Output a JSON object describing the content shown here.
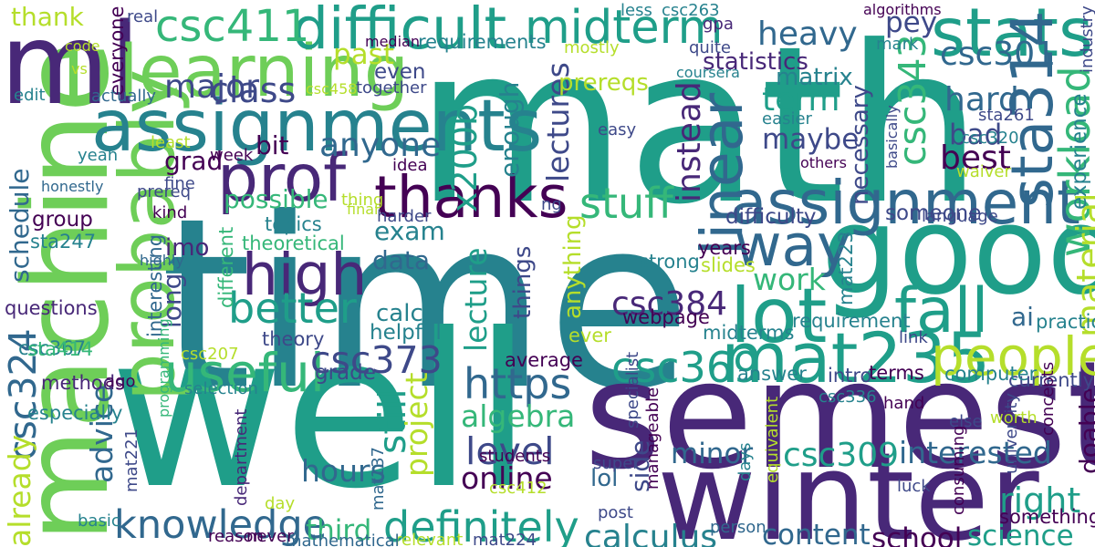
{
  "colors": {
    "background": "#ffffff",
    "palette": [
      "#440154",
      "#482878",
      "#3e4989",
      "#31688e",
      "#26828e",
      "#1f9e89",
      "#35b779",
      "#6ece58",
      "#b5de2b",
      "#fde725"
    ]
  },
  "words": [
    {
      "text": "time",
      "color": "#26828e",
      "weight": 1.0
    },
    {
      "text": "math",
      "color": "#1f9e89",
      "weight": 0.92
    },
    {
      "text": "well",
      "color": "#1f9e89",
      "weight": 0.9
    },
    {
      "text": "semester",
      "color": "#482878",
      "weight": 0.62
    },
    {
      "text": "winter",
      "color": "#482878",
      "weight": 0.5
    },
    {
      "text": "good",
      "color": "#1f9e89",
      "weight": 0.5
    },
    {
      "text": "machine",
      "color": "#6ece58",
      "weight": 0.48
    },
    {
      "text": "ml",
      "color": "#482878",
      "weight": 0.46
    },
    {
      "text": "probably",
      "color": "#6ece58",
      "weight": 0.3
    },
    {
      "text": "learning",
      "color": "#6ece58",
      "weight": 0.28
    },
    {
      "text": "assignments",
      "color": "#26828e",
      "weight": 0.28
    },
    {
      "text": "mat235",
      "color": "#1f9e89",
      "weight": 0.27
    },
    {
      "text": "lot",
      "color": "#1f9e89",
      "weight": 0.3
    },
    {
      "text": "stats",
      "color": "#1f9e89",
      "weight": 0.26
    },
    {
      "text": "assignment",
      "color": "#31688e",
      "weight": 0.23
    },
    {
      "text": "prof",
      "color": "#482878",
      "weight": 0.25
    },
    {
      "text": "difficult",
      "color": "#1f9e89",
      "weight": 0.22
    },
    {
      "text": "thanks",
      "color": "#440154",
      "weight": 0.22
    },
    {
      "text": "linear",
      "color": "#31688e",
      "weight": 0.22
    },
    {
      "text": "high",
      "color": "#482878",
      "weight": 0.22
    },
    {
      "text": "fall",
      "color": "#1f9e89",
      "weight": 0.24
    },
    {
      "text": "sta314",
      "color": "#31688e",
      "weight": 0.22
    },
    {
      "text": "way",
      "color": "#31688e",
      "weight": 0.22
    },
    {
      "text": "people",
      "color": "#b5de2b",
      "weight": 0.2
    },
    {
      "text": "useful",
      "color": "#35b779",
      "weight": 0.2
    },
    {
      "text": "midterm",
      "color": "#1f9e89",
      "weight": 0.17
    },
    {
      "text": "csc411",
      "color": "#35b779",
      "weight": 0.16
    },
    {
      "text": "better",
      "color": "#1f9e89",
      "weight": 0.15
    },
    {
      "text": "workload",
      "color": "#35b779",
      "weight": 0.15
    },
    {
      "text": "csc369",
      "color": "#1f9e89",
      "weight": 0.15
    },
    {
      "text": "https",
      "color": "#31688e",
      "weight": 0.15
    },
    {
      "text": "definitely",
      "color": "#1f9e89",
      "weight": 0.15
    },
    {
      "text": "knowledge",
      "color": "#31688e",
      "weight": 0.14
    },
    {
      "text": "stuff",
      "color": "#35b779",
      "weight": 0.15
    },
    {
      "text": "csc343",
      "color": "#35b779",
      "weight": 0.13
    },
    {
      "text": "csc373",
      "color": "#3e4989",
      "weight": 0.13
    },
    {
      "text": "csc324",
      "color": "#31688e",
      "weight": 0.13
    },
    {
      "text": "level",
      "color": "#3e4989",
      "weight": 0.13
    },
    {
      "text": "still",
      "color": "#1f9e89",
      "weight": 0.13
    },
    {
      "text": "right",
      "color": "#1f9e89",
      "weight": 0.12
    },
    {
      "text": "material",
      "color": "#b5de2b",
      "weight": 0.12
    },
    {
      "text": "class",
      "color": "#3e4989",
      "weight": 0.12
    },
    {
      "text": "x200b",
      "color": "#1f9e89",
      "weight": 0.12
    },
    {
      "text": "major",
      "color": "#3e4989",
      "weight": 0.11
    },
    {
      "text": "term",
      "color": "#1f9e89",
      "weight": 0.11
    },
    {
      "text": "csc301",
      "color": "#31688e",
      "weight": 0.11
    },
    {
      "text": "heavy",
      "color": "#31688e",
      "weight": 0.11
    },
    {
      "text": "instead",
      "color": "#482878",
      "weight": 0.11
    },
    {
      "text": "anyone",
      "color": "#31688e",
      "weight": 0.11
    },
    {
      "text": "hard",
      "color": "#31688e",
      "weight": 0.11
    },
    {
      "text": "best",
      "color": "#440154",
      "weight": 0.11
    },
    {
      "text": "csc384",
      "color": "#482878",
      "weight": 0.11
    },
    {
      "text": "csc309",
      "color": "#1f9e89",
      "weight": 0.11
    },
    {
      "text": "calculus",
      "color": "#26828e",
      "weight": 0.11
    },
    {
      "text": "interested",
      "color": "#31688e",
      "weight": 0.1
    },
    {
      "text": "online",
      "color": "#440154",
      "weight": 0.1
    },
    {
      "text": "algebra",
      "color": "#35b779",
      "weight": 0.1
    },
    {
      "text": "lecture",
      "color": "#1f9e89",
      "weight": 0.1
    },
    {
      "text": "lectures",
      "color": "#3e4989",
      "weight": 0.1
    },
    {
      "text": "hours",
      "color": "#31688e",
      "weight": 0.1
    },
    {
      "text": "project",
      "color": "#b5de2b",
      "weight": 0.1
    },
    {
      "text": "advice",
      "color": "#31688e",
      "weight": 0.1
    },
    {
      "text": "already",
      "color": "#b5de2b",
      "weight": 0.1
    },
    {
      "text": "work",
      "color": "#35b779",
      "weight": 0.1
    },
    {
      "text": "content",
      "color": "#31688e",
      "weight": 0.09
    },
    {
      "text": "science",
      "color": "#1f9e89",
      "weight": 0.09
    },
    {
      "text": "school",
      "color": "#440154",
      "weight": 0.09
    },
    {
      "text": "third",
      "color": "#35b779",
      "weight": 0.09
    },
    {
      "text": "minor",
      "color": "#31688e",
      "weight": 0.09
    },
    {
      "text": "pey",
      "color": "#3e4989",
      "weight": 0.09
    },
    {
      "text": "maybe",
      "color": "#3e4989",
      "weight": 0.09
    },
    {
      "text": "bad",
      "color": "#3e4989",
      "weight": 0.09
    },
    {
      "text": "past",
      "color": "#b5de2b",
      "weight": 0.09
    },
    {
      "text": "possible",
      "color": "#35b779",
      "weight": 0.08
    },
    {
      "text": "bit",
      "color": "#440154",
      "weight": 0.08
    },
    {
      "text": "grad",
      "color": "#440154",
      "weight": 0.08
    },
    {
      "text": "exam",
      "color": "#26828e",
      "weight": 0.08
    },
    {
      "text": "data",
      "color": "#31688e",
      "weight": 0.08
    },
    {
      "text": "enough",
      "color": "#26828e",
      "weight": 0.08
    },
    {
      "text": "long",
      "color": "#3e4989",
      "weight": 0.08
    },
    {
      "text": "side",
      "color": "#3e4989",
      "weight": 0.08
    },
    {
      "text": "schedule",
      "color": "#31688e",
      "weight": 0.08
    },
    {
      "text": "ai",
      "color": "#31688e",
      "weight": 0.08
    },
    {
      "text": "doable",
      "color": "#440154",
      "weight": 0.08
    },
    {
      "text": "thank",
      "color": "#b5de2b",
      "weight": 0.08
    },
    {
      "text": "calc",
      "color": "#26828e",
      "weight": 0.07
    },
    {
      "text": "imo",
      "color": "#482878",
      "weight": 0.07
    },
    {
      "text": "lol",
      "color": "#31688e",
      "weight": 0.07
    },
    {
      "text": "things",
      "color": "#3e4989",
      "weight": 0.07
    },
    {
      "text": "anything",
      "color": "#b5de2b",
      "weight": 0.07
    },
    {
      "text": "necessary",
      "color": "#3e4989",
      "weight": 0.07
    },
    {
      "text": "prereqs",
      "color": "#b5de2b",
      "weight": 0.07
    },
    {
      "text": "matrix",
      "color": "#26828e",
      "weight": 0.07
    },
    {
      "text": "statistics",
      "color": "#482878",
      "weight": 0.07
    },
    {
      "text": "group",
      "color": "#440154",
      "weight": 0.06
    },
    {
      "text": "difficulty",
      "color": "#3e4989",
      "weight": 0.06
    },
    {
      "text": "someone",
      "color": "#3e4989",
      "weight": 0.06
    },
    {
      "text": "even",
      "color": "#3e4989",
      "weight": 0.06
    },
    {
      "text": "helpful",
      "color": "#26828e",
      "weight": 0.06
    },
    {
      "text": "grade",
      "color": "#3e4989",
      "weight": 0.06
    },
    {
      "text": "experience",
      "color": "#26828e",
      "weight": 0.06
    },
    {
      "text": "requirements",
      "color": "#26828e",
      "weight": 0.05
    },
    {
      "text": "everyone",
      "color": "#440154",
      "weight": 0.05
    },
    {
      "text": "questions",
      "color": "#482878",
      "weight": 0.05
    },
    {
      "text": "csc367",
      "color": "#26828e",
      "weight": 0.05
    },
    {
      "text": "sta247",
      "color": "#26828e",
      "weight": 0.05
    },
    {
      "text": "sta414",
      "color": "#35b779",
      "weight": 0.05
    },
    {
      "text": "especially",
      "color": "#26828e",
      "weight": 0.05
    },
    {
      "text": "methods",
      "color": "#482878",
      "weight": 0.05
    },
    {
      "text": "interesting",
      "color": "#31688e",
      "weight": 0.05
    },
    {
      "text": "different",
      "color": "#35b779",
      "weight": 0.05
    },
    {
      "text": "theoretical",
      "color": "#35b779",
      "weight": 0.05
    },
    {
      "text": "topics",
      "color": "#26828e",
      "weight": 0.05
    },
    {
      "text": "strong",
      "color": "#26828e",
      "weight": 0.05
    },
    {
      "text": "webpage",
      "color": "#440154",
      "weight": 0.05
    },
    {
      "text": "requirement",
      "color": "#26828e",
      "weight": 0.05
    },
    {
      "text": "mat223",
      "color": "#26828e",
      "weight": 0.05
    },
    {
      "text": "years",
      "color": "#440154",
      "weight": 0.05
    },
    {
      "text": "slides",
      "color": "#b5de2b",
      "weight": 0.05
    },
    {
      "text": "practical",
      "color": "#26828e",
      "weight": 0.05
    },
    {
      "text": "midterms",
      "color": "#26828e",
      "weight": 0.05
    },
    {
      "text": "currently",
      "color": "#3e4989",
      "weight": 0.05
    },
    {
      "text": "computer",
      "color": "#26828e",
      "weight": 0.05
    },
    {
      "text": "intro",
      "color": "#3e4989",
      "weight": 0.05
    },
    {
      "text": "terms",
      "color": "#440154",
      "weight": 0.05
    },
    {
      "text": "answer",
      "color": "#26828e",
      "weight": 0.05
    },
    {
      "text": "average",
      "color": "#440154",
      "weight": 0.05
    },
    {
      "text": "ever",
      "color": "#b5de2b",
      "weight": 0.05
    },
    {
      "text": "theory",
      "color": "#3e4989",
      "weight": 0.05
    },
    {
      "text": "csc207",
      "color": "#b5de2b",
      "weight": 0.04
    },
    {
      "text": "selection",
      "color": "#26828e",
      "weight": 0.04
    },
    {
      "text": "ago",
      "color": "#440154",
      "weight": 0.04
    },
    {
      "text": "mat221",
      "color": "#3e4989",
      "weight": 0.04
    },
    {
      "text": "mat137",
      "color": "#31688e",
      "weight": 0.04
    },
    {
      "text": "csc412",
      "color": "#b5de2b",
      "weight": 0.04
    },
    {
      "text": "students",
      "color": "#440154",
      "weight": 0.04
    },
    {
      "text": "specialist",
      "color": "#3e4989",
      "weight": 0.04
    },
    {
      "text": "manageable",
      "color": "#440154",
      "weight": 0.04
    },
    {
      "text": "super",
      "color": "#3e4989",
      "weight": 0.04
    },
    {
      "text": "post",
      "color": "#3e4989",
      "weight": 0.04
    },
    {
      "text": "relevant",
      "color": "#b5de2b",
      "weight": 0.04
    },
    {
      "text": "mat224",
      "color": "#3e4989",
      "weight": 0.04
    },
    {
      "text": "mathematical",
      "color": "#31688e",
      "weight": 0.04
    },
    {
      "text": "reason",
      "color": "#440154",
      "weight": 0.04
    },
    {
      "text": "never",
      "color": "#440154",
      "weight": 0.04
    },
    {
      "text": "basic",
      "color": "#26828e",
      "weight": 0.04
    },
    {
      "text": "department",
      "color": "#482878",
      "weight": 0.04
    },
    {
      "text": "day",
      "color": "#b5de2b",
      "weight": 0.04
    },
    {
      "text": "person",
      "color": "#31688e",
      "weight": 0.04
    },
    {
      "text": "days",
      "color": "#26828e",
      "weight": 0.04
    },
    {
      "text": "equivalent",
      "color": "#b5de2b",
      "weight": 0.04
    },
    {
      "text": "luck",
      "color": "#3e4989",
      "weight": 0.04
    },
    {
      "text": "consuming",
      "color": "#440154",
      "weight": 0.04
    },
    {
      "text": "university",
      "color": "#3e4989",
      "weight": 0.04
    },
    {
      "text": "concepts",
      "color": "#440154",
      "weight": 0.04
    },
    {
      "text": "something",
      "color": "#440154",
      "weight": 0.05
    },
    {
      "text": "else",
      "color": "#3e4989",
      "weight": 0.04
    },
    {
      "text": "worth",
      "color": "#b5de2b",
      "weight": 0.04
    },
    {
      "text": "link",
      "color": "#3e4989",
      "weight": 0.04
    },
    {
      "text": "hand",
      "color": "#440154",
      "weight": 0.04
    },
    {
      "text": "csc336",
      "color": "#26828e",
      "weight": 0.04
    },
    {
      "text": "programming",
      "color": "#35b779",
      "weight": 0.03
    },
    {
      "text": "language",
      "color": "#3e4989",
      "weight": 0.04
    },
    {
      "text": "waiver",
      "color": "#b5de2b",
      "weight": 0.04
    },
    {
      "text": "basically",
      "color": "#3e4989",
      "weight": 0.03
    },
    {
      "text": "others",
      "color": "#440154",
      "weight": 0.03
    },
    {
      "text": "easier",
      "color": "#26828e",
      "weight": 0.04
    },
    {
      "text": "easy",
      "color": "#3e4989",
      "weight": 0.04
    },
    {
      "text": "csc320",
      "color": "#26828e",
      "weight": 0.04
    },
    {
      "text": "sta261",
      "color": "#3e4989",
      "weight": 0.04
    },
    {
      "text": "mark",
      "color": "#26828e",
      "weight": 0.04
    },
    {
      "text": "algorithms",
      "color": "#440154",
      "weight": 0.03
    },
    {
      "text": "industry",
      "color": "#3e4989",
      "weight": 0.04
    },
    {
      "text": "gpa",
      "color": "#482878",
      "weight": 0.04
    },
    {
      "text": "coursera",
      "color": "#26828e",
      "weight": 0.03
    },
    {
      "text": "quite",
      "color": "#3e4989",
      "weight": 0.04
    },
    {
      "text": "csc263",
      "color": "#26828e",
      "weight": 0.04
    },
    {
      "text": "less",
      "color": "#26828e",
      "weight": 0.04
    },
    {
      "text": "mostly",
      "color": "#b5de2b",
      "weight": 0.04
    },
    {
      "text": "median",
      "color": "#440154",
      "weight": 0.03
    },
    {
      "text": "real",
      "color": "#3e4989",
      "weight": 0.04
    },
    {
      "text": "code",
      "color": "#b5de2b",
      "weight": 0.03
    },
    {
      "text": "vs",
      "color": "#b5de2b",
      "weight": 0.03
    },
    {
      "text": "edit",
      "color": "#26828e",
      "weight": 0.04
    },
    {
      "text": "actually",
      "color": "#31688e",
      "weight": 0.04
    },
    {
      "text": "csc458",
      "color": "#b5de2b",
      "weight": 0.03
    },
    {
      "text": "together",
      "color": "#3e4989",
      "weight": 0.04
    },
    {
      "text": "week",
      "color": "#440154",
      "weight": 0.04
    },
    {
      "text": "least",
      "color": "#b5de2b",
      "weight": 0.04
    },
    {
      "text": "yeah",
      "color": "#26828e",
      "weight": 0.04
    },
    {
      "text": "honestly",
      "color": "#31688e",
      "weight": 0.03
    },
    {
      "text": "fine",
      "color": "#3e4989",
      "weight": 0.04
    },
    {
      "text": "prereq",
      "color": "#3e4989",
      "weight": 0.04
    },
    {
      "text": "kind",
      "color": "#440154",
      "weight": 0.04
    },
    {
      "text": "idea",
      "color": "#440154",
      "weight": 0.04
    },
    {
      "text": "thing",
      "color": "#b5de2b",
      "weight": 0.04
    },
    {
      "text": "final",
      "color": "#b5de2b",
      "weight": 0.03
    },
    {
      "text": "harder",
      "color": "#3e4989",
      "weight": 0.04
    },
    {
      "text": "ng",
      "color": "#3e4989",
      "weight": 0.04
    },
    {
      "text": "highly",
      "color": "#31688e",
      "weight": 0.03
    }
  ]
}
